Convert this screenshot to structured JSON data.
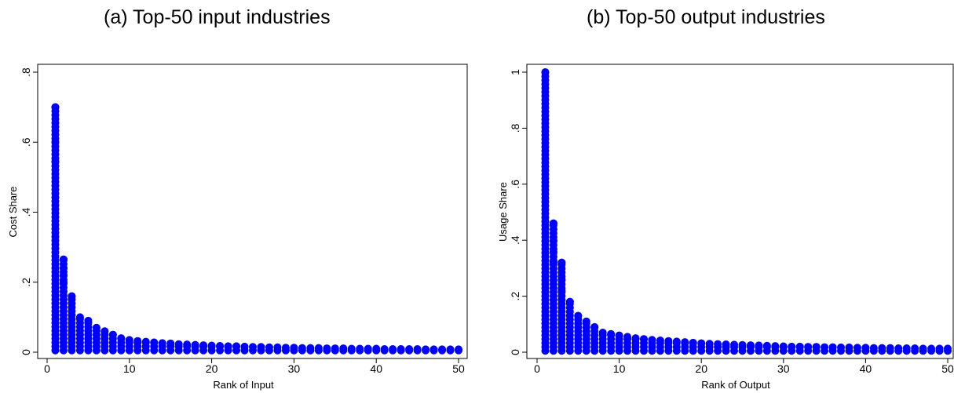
{
  "chart_data": [
    {
      "type": "scatter",
      "title": "(a) Top-50 input industries",
      "xlabel": "Rank of Input",
      "ylabel": "Cost Share",
      "xlim": [
        0,
        50
      ],
      "ylim": [
        0,
        0.8
      ],
      "xticks": [
        0,
        10,
        20,
        30,
        40,
        50
      ],
      "xtick_labels": [
        "0",
        "10",
        "20",
        "30",
        "40",
        "50"
      ],
      "yticks": [
        0,
        0.2,
        0.4,
        0.6,
        0.8
      ],
      "ytick_labels": [
        "0",
        ".2",
        ".4",
        ".6",
        ".8"
      ],
      "grid": false,
      "legend": "none",
      "marker_color": "#0000ff",
      "rank_max_share": [
        0.7,
        0.265,
        0.16,
        0.1,
        0.09,
        0.07,
        0.06,
        0.05,
        0.04,
        0.035,
        0.032,
        0.03,
        0.028,
        0.026,
        0.025,
        0.023,
        0.022,
        0.021,
        0.02,
        0.019,
        0.018,
        0.017,
        0.017,
        0.016,
        0.015,
        0.015,
        0.014,
        0.014,
        0.013,
        0.013,
        0.012,
        0.012,
        0.012,
        0.011,
        0.011,
        0.011,
        0.01,
        0.01,
        0.01,
        0.01,
        0.009,
        0.009,
        0.009,
        0.009,
        0.009,
        0.008,
        0.008,
        0.008,
        0.008,
        0.008
      ],
      "outliers": [
        {
          "x": 1,
          "y": 0.7
        },
        {
          "x": 1,
          "y": 0.6
        },
        {
          "x": 1,
          "y": 0.545
        },
        {
          "x": 2,
          "y": 0.265
        },
        {
          "x": 2,
          "y": 0.24
        },
        {
          "x": 2,
          "y": 0.22
        },
        {
          "x": 2,
          "y": 0.2
        },
        {
          "x": 3,
          "y": 0.16
        }
      ],
      "rank_min_share": 0.005
    },
    {
      "type": "scatter",
      "title": "(b) Top-50 output industries",
      "xlabel": "Rank of Output",
      "ylabel": "Usage Share",
      "xlim": [
        0,
        50
      ],
      "ylim": [
        0,
        1
      ],
      "xticks": [
        0,
        10,
        20,
        30,
        40,
        50
      ],
      "xtick_labels": [
        "0",
        "10",
        "20",
        "30",
        "40",
        "50"
      ],
      "yticks": [
        0,
        0.2,
        0.4,
        0.6,
        0.8,
        1
      ],
      "ytick_labels": [
        "0",
        ".2",
        ".4",
        ".6",
        ".8",
        "1"
      ],
      "grid": false,
      "legend": "none",
      "marker_color": "#0000ff",
      "rank_max_share": [
        1.0,
        0.46,
        0.32,
        0.18,
        0.13,
        0.11,
        0.09,
        0.07,
        0.065,
        0.06,
        0.055,
        0.05,
        0.047,
        0.044,
        0.042,
        0.04,
        0.038,
        0.036,
        0.034,
        0.032,
        0.03,
        0.029,
        0.028,
        0.027,
        0.026,
        0.025,
        0.024,
        0.023,
        0.022,
        0.021,
        0.02,
        0.02,
        0.019,
        0.019,
        0.018,
        0.018,
        0.017,
        0.017,
        0.016,
        0.016,
        0.015,
        0.015,
        0.015,
        0.014,
        0.014,
        0.014,
        0.013,
        0.013,
        0.013,
        0.013
      ],
      "outliers": [
        {
          "x": 2,
          "y": 0.46
        },
        {
          "x": 2,
          "y": 0.4
        },
        {
          "x": 2,
          "y": 0.36
        },
        {
          "x": 2,
          "y": 0.32
        },
        {
          "x": 3,
          "y": 0.32
        },
        {
          "x": 3,
          "y": 0.26
        },
        {
          "x": 3,
          "y": 0.22
        },
        {
          "x": 4,
          "y": 0.18
        },
        {
          "x": 5,
          "y": 0.13
        }
      ],
      "rank_min_share": 0.005
    }
  ]
}
